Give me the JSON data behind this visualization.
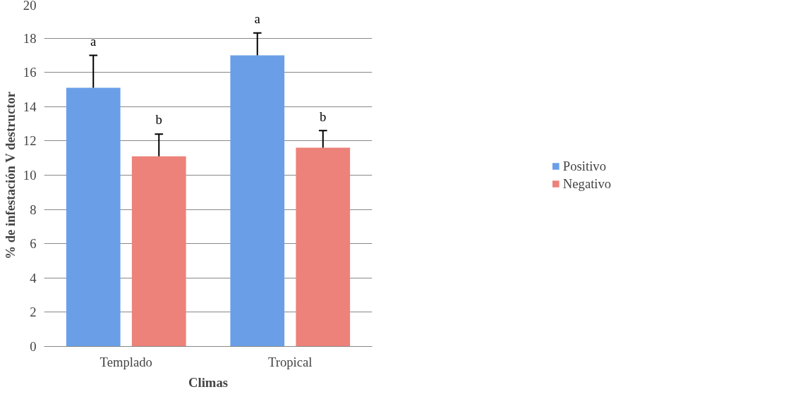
{
  "chart_data": {
    "type": "bar",
    "xlabel": "Climas",
    "ylabel": "% de infestación V destructor",
    "categories": [
      "Templado",
      "Tropical"
    ],
    "series": [
      {
        "name": "Positivo",
        "color": "#6a9fe8",
        "values": [
          15.1,
          17.0
        ],
        "errors": [
          [
            15.1,
            17.0
          ],
          [
            17.0,
            18.3
          ]
        ]
      },
      {
        "name": "Negativo",
        "color": "#ec827a",
        "values": [
          11.1,
          11.6
        ],
        "errors": [
          [
            11.1,
            12.4
          ],
          [
            11.6,
            12.6
          ]
        ]
      }
    ],
    "annotations": [
      "a",
      "b",
      "a",
      "b"
    ],
    "ylim": [
      0,
      20
    ],
    "yticks": [
      0,
      2,
      4,
      6,
      8,
      10,
      12,
      14,
      16,
      18,
      20
    ],
    "grid": "y",
    "legend": "right"
  }
}
